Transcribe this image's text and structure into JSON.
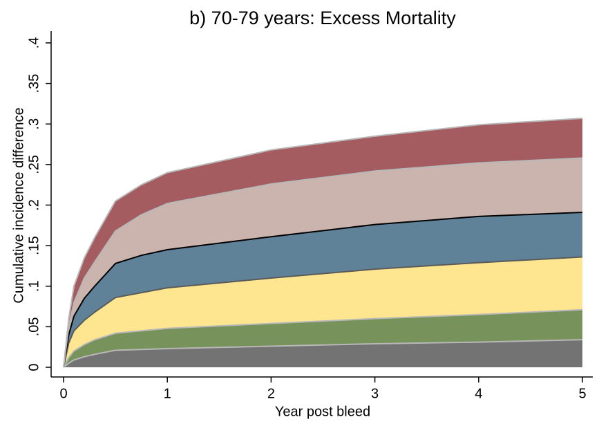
{
  "chart_data": {
    "type": "stacked_area",
    "title": "b) 70-79 years: Excess Mortality",
    "xlabel": "Year post bleed",
    "ylabel": "Cumulative incidence difference",
    "x": [
      0,
      0.05,
      0.1,
      0.2,
      0.3,
      0.5,
      0.75,
      1,
      2,
      3,
      4,
      5
    ],
    "series": [
      {
        "color": "#737373",
        "line_color": "#b8b8b8",
        "values": [
          0,
          0.005,
          0.009,
          0.013,
          0.016,
          0.021,
          0.022,
          0.023,
          0.026,
          0.029,
          0.031,
          0.034
        ]
      },
      {
        "color": "#77925a",
        "line_color": "#b8b8b8",
        "values": [
          0,
          0.007,
          0.011,
          0.015,
          0.018,
          0.021,
          0.023,
          0.025,
          0.028,
          0.031,
          0.034,
          0.037
        ]
      },
      {
        "color": "#fde68f",
        "line_color": "#5a5a5a",
        "values": [
          0,
          0.018,
          0.025,
          0.03,
          0.034,
          0.044,
          0.047,
          0.05,
          0.056,
          0.061,
          0.064,
          0.065
        ]
      },
      {
        "color": "#5f8299",
        "line_color": "#000000",
        "values": [
          0,
          0.01,
          0.018,
          0.027,
          0.032,
          0.042,
          0.046,
          0.047,
          0.051,
          0.055,
          0.057,
          0.055
        ]
      },
      {
        "color": "#cbb3ae",
        "line_color": "#b8b8b8",
        "values": [
          0,
          0.01,
          0.017,
          0.025,
          0.03,
          0.04,
          0.05,
          0.057,
          0.065,
          0.066,
          0.066,
          0.067
        ]
      },
      {
        "color": "#a45c60",
        "line_color": "#b8b8b8",
        "values": [
          0,
          0.01,
          0.02,
          0.025,
          0.03,
          0.037,
          0.037,
          0.038,
          0.042,
          0.043,
          0.047,
          0.049
        ]
      }
    ],
    "xlim": [
      0,
      5
    ],
    "xticks": [
      0,
      1,
      2,
      3,
      4,
      5
    ],
    "ylim": [
      0,
      0.4
    ],
    "yticks": [
      0,
      {
        "value": 0.05,
        "label": ".05"
      },
      {
        "value": 0.1,
        "label": ".1"
      },
      {
        "value": 0.15,
        "label": ".15"
      },
      {
        "value": 0.2,
        "label": ".2"
      },
      {
        "value": 0.25,
        "label": ".25"
      },
      {
        "value": 0.3,
        "label": ".3"
      },
      {
        "value": 0.35,
        "label": ".35"
      },
      {
        "value": 0.4,
        "label": ".4"
      }
    ],
    "grid": false
  }
}
